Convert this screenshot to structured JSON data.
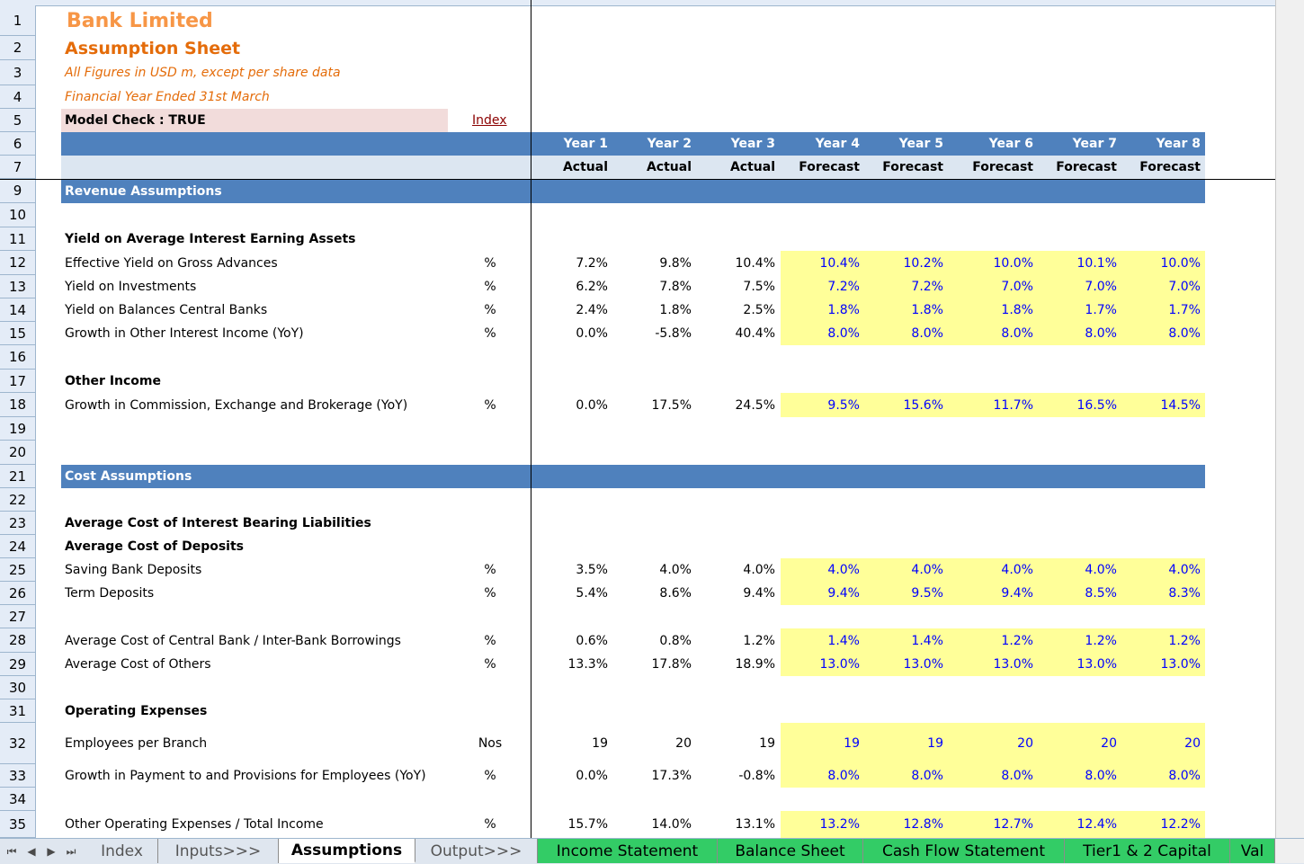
{
  "title": {
    "company": "Bank Limited",
    "sheet": "Assumption Sheet",
    "units_note": "All Figures in USD m, except per share data",
    "fy_note": "Financial Year Ended 31st March"
  },
  "model_check": "Model Check : TRUE",
  "index_link": "Index",
  "years": [
    "Year 1",
    "Year 2",
    "Year 3",
    "Year 4",
    "Year 5",
    "Year 6",
    "Year 7",
    "Year 8"
  ],
  "year_types": [
    "Actual",
    "Actual",
    "Actual",
    "Forecast",
    "Forecast",
    "Forecast",
    "Forecast",
    "Forecast"
  ],
  "row_numbers": [
    "1",
    "2",
    "3",
    "4",
    "5",
    "6",
    "7",
    "9",
    "10",
    "11",
    "12",
    "13",
    "14",
    "15",
    "16",
    "17",
    "18",
    "19",
    "20",
    "21",
    "22",
    "23",
    "24",
    "25",
    "26",
    "27",
    "28",
    "29",
    "30",
    "31",
    "32",
    "33",
    "34",
    "35"
  ],
  "sections": {
    "revenue": "Revenue Assumptions",
    "cost": "Cost Assumptions"
  },
  "headings": {
    "yield": "Yield on Average Interest Earning Assets",
    "other_income": "Other Income",
    "avg_cost_ibl": "Average Cost of Interest Bearing Liabilities",
    "avg_cost_dep": "Average Cost of Deposits",
    "opex": "Operating Expenses"
  },
  "lines": {
    "r12": {
      "label": "Effective Yield on Gross Advances",
      "unit": "%",
      "values": [
        "7.2%",
        "9.8%",
        "10.4%",
        "10.4%",
        "10.2%",
        "10.0%",
        "10.1%",
        "10.0%"
      ]
    },
    "r13": {
      "label": "Yield on Investments",
      "unit": "%",
      "values": [
        "6.2%",
        "7.8%",
        "7.5%",
        "7.2%",
        "7.2%",
        "7.0%",
        "7.0%",
        "7.0%"
      ]
    },
    "r14": {
      "label": "Yield on Balances Central Banks",
      "unit": "%",
      "values": [
        "2.4%",
        "1.8%",
        "2.5%",
        "1.8%",
        "1.8%",
        "1.8%",
        "1.7%",
        "1.7%"
      ]
    },
    "r15": {
      "label": "Growth in Other Interest Income (YoY)",
      "unit": "%",
      "values": [
        "0.0%",
        "-5.8%",
        "40.4%",
        "8.0%",
        "8.0%",
        "8.0%",
        "8.0%",
        "8.0%"
      ]
    },
    "r18": {
      "label": "Growth in Commission, Exchange and Brokerage (YoY)",
      "unit": "%",
      "values": [
        "0.0%",
        "17.5%",
        "24.5%",
        "9.5%",
        "15.6%",
        "11.7%",
        "16.5%",
        "14.5%"
      ]
    },
    "r25": {
      "label": "Saving Bank Deposits",
      "unit": "%",
      "values": [
        "3.5%",
        "4.0%",
        "4.0%",
        "4.0%",
        "4.0%",
        "4.0%",
        "4.0%",
        "4.0%"
      ]
    },
    "r26": {
      "label": "Term Deposits",
      "unit": "%",
      "values": [
        "5.4%",
        "8.6%",
        "9.4%",
        "9.4%",
        "9.5%",
        "9.4%",
        "8.5%",
        "8.3%"
      ]
    },
    "r28": {
      "label": "Average Cost of Central Bank / Inter-Bank Borrowings",
      "unit": "%",
      "values": [
        "0.6%",
        "0.8%",
        "1.2%",
        "1.4%",
        "1.4%",
        "1.2%",
        "1.2%",
        "1.2%"
      ]
    },
    "r29": {
      "label": "Average Cost of Others",
      "unit": "%",
      "values": [
        "13.3%",
        "17.8%",
        "18.9%",
        "13.0%",
        "13.0%",
        "13.0%",
        "13.0%",
        "13.0%"
      ]
    },
    "r32": {
      "label": "Employees per Branch",
      "unit": "Nos",
      "values": [
        "19",
        "20",
        "19",
        "19",
        "19",
        "20",
        "20",
        "20"
      ]
    },
    "r33": {
      "label": "Growth in Payment to and Provisions for Employees (YoY)",
      "unit": "%",
      "values": [
        "0.0%",
        "17.3%",
        "-0.8%",
        "8.0%",
        "8.0%",
        "8.0%",
        "8.0%",
        "8.0%"
      ]
    },
    "r35": {
      "label": "Other Operating Expenses / Total Income",
      "unit": "%",
      "values": [
        "15.7%",
        "14.0%",
        "13.1%",
        "13.2%",
        "12.8%",
        "12.7%",
        "12.4%",
        "12.2%"
      ]
    }
  },
  "tabs": [
    "Index",
    "Inputs>>>",
    "Assumptions",
    "Output>>>",
    "Income Statement",
    "Balance Sheet",
    "Cash Flow Statement",
    "Tier1 & 2 Capital",
    "Val"
  ],
  "nav_icons": [
    "first-sheet-icon",
    "prev-sheet-icon",
    "next-sheet-icon",
    "last-sheet-icon"
  ],
  "colors": {
    "header_blue": "#4f81bd",
    "subheader": "#dce6f1",
    "input_fill": "#ffff99",
    "input_text": "#0000ff",
    "title_orange": "#e46c0a",
    "check_fill": "#f2dcdb",
    "tab_green": "#33cc66"
  }
}
